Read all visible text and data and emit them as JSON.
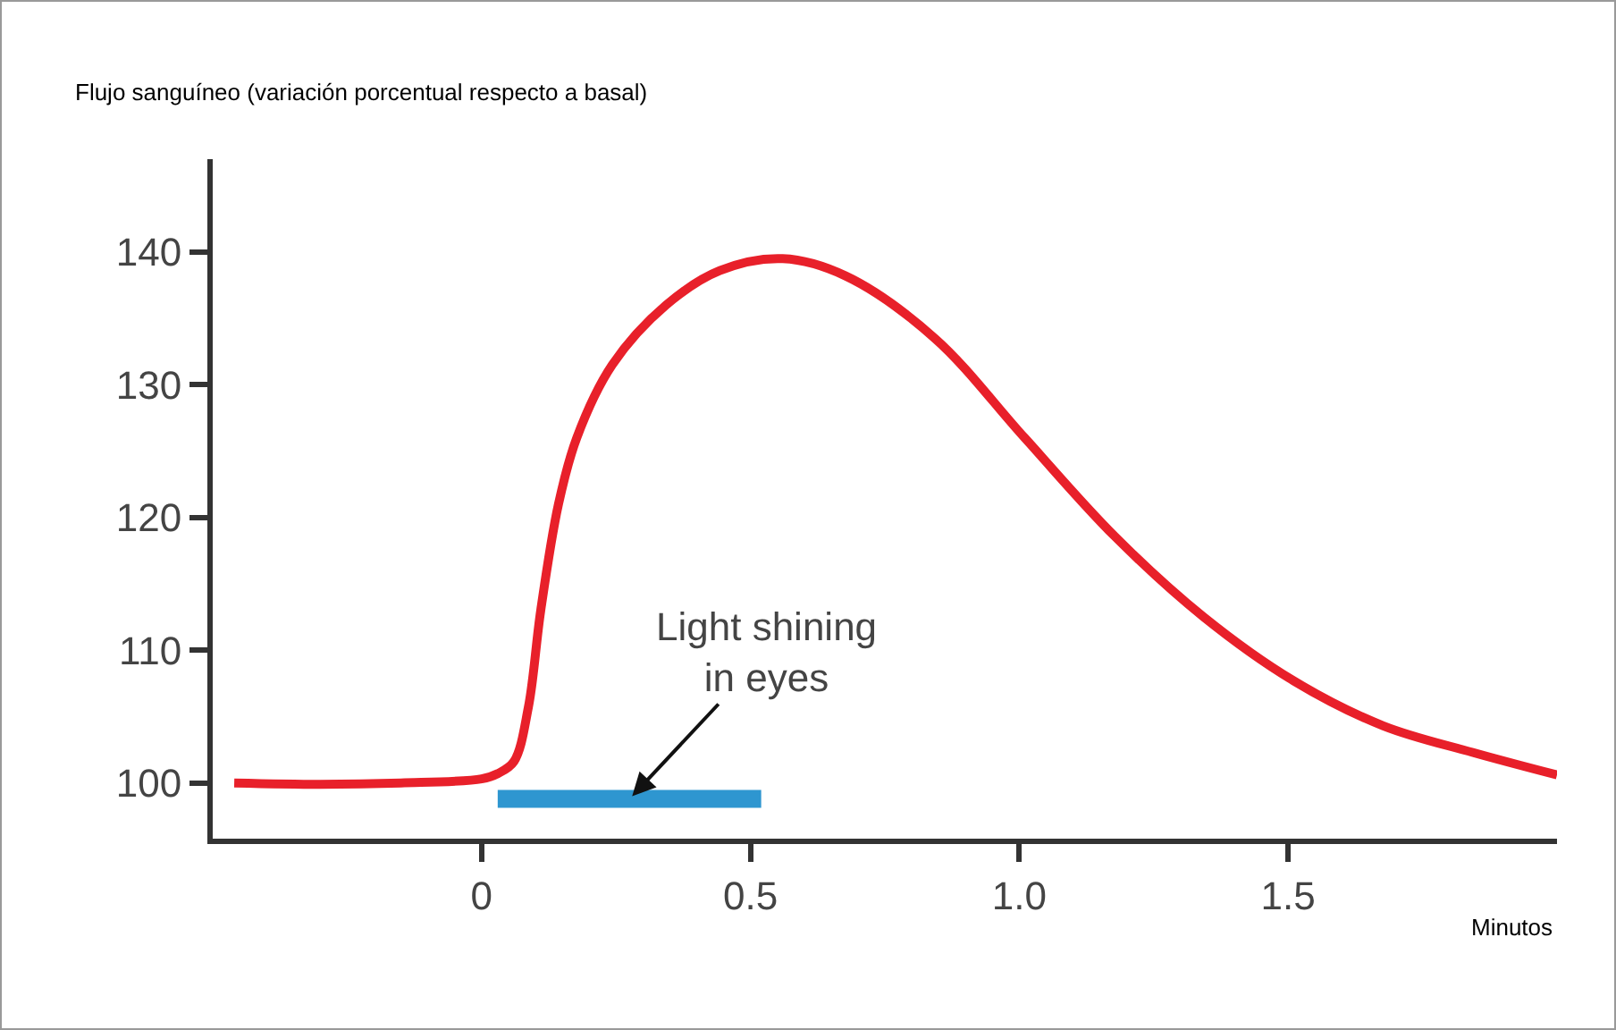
{
  "chart_data": {
    "type": "line",
    "ylabel": "Flujo sanguíneo (variación porcentual respecto a basal)",
    "xlabel": "Minutos",
    "series": [
      {
        "color": "#e8202a",
        "x": [
          -0.46,
          -0.3,
          -0.15,
          0,
          0.03,
          0.06,
          0.087,
          0.11,
          0.143,
          0.177,
          0.243,
          0.343,
          0.443,
          0.56,
          0.677,
          0.843,
          1.01,
          1.177,
          1.343,
          1.51,
          1.677,
          1.843,
          2.0
        ],
        "values": [
          100,
          99.9,
          100,
          100.3,
          100.7,
          101.6,
          105.7,
          113,
          121,
          126,
          131.5,
          136,
          138.6,
          139.5,
          138.2,
          133.5,
          126,
          118.6,
          112.5,
          107.7,
          104.3,
          102.3,
          100.6
        ]
      },
      {
        "color": "#2e96d0",
        "x": [
          0.03,
          0.52
        ],
        "values": [
          98.8,
          98.8
        ]
      }
    ],
    "annotations": [
      {
        "text": "Light shining\nin eyes",
        "x": 0.28,
        "y": 99
      }
    ],
    "xlim": [
      -0.5,
      2.0
    ],
    "xticks": [
      0,
      0.5,
      {
        "value": 1,
        "label": "1.0"
      },
      1.5
    ],
    "ylim": [
      95.8,
      147
    ],
    "yticks": [
      100,
      110,
      120,
      130,
      140
    ],
    "grid": false,
    "marker": "none",
    "line_style": "solid"
  }
}
